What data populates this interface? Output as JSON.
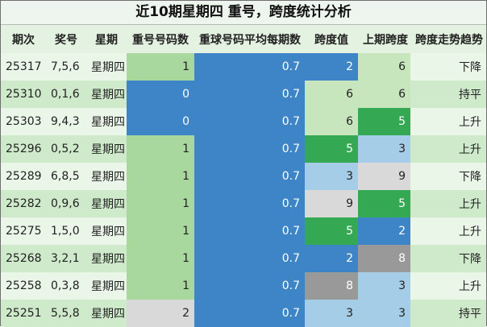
{
  "title": "近10期星期四 重号，跨度统计分析",
  "colors": {
    "row_light": "#eaf6e8",
    "row_dark": "#cfeacb",
    "green_light": "#a8d89d",
    "blue": "#3d85c6",
    "pale_green": "#c7e6bd",
    "green": "#34a853",
    "light_blue": "#a6cde8",
    "grey_light": "#d9d9d9",
    "grey": "#999999"
  },
  "headers": [
    "期次",
    "奖号",
    "星期",
    "重号号码数",
    "重球号码平均每期数",
    "跨度值",
    "上期跨度",
    "跨度走势趋势"
  ],
  "rows": [
    {
      "period": "25317",
      "numbers": "7,5,6",
      "weekday": "星期四",
      "repeat": "1",
      "avg": "0.7",
      "span": "2",
      "prev_span": "6",
      "trend": "下降",
      "repeat_bg": "green_light",
      "span_bg": "blue",
      "prev_bg": "pale_green"
    },
    {
      "period": "25310",
      "numbers": "0,1,6",
      "weekday": "星期四",
      "repeat": "0",
      "avg": "0.7",
      "span": "6",
      "prev_span": "6",
      "trend": "持平",
      "repeat_bg": "blue",
      "span_bg": "pale_green",
      "prev_bg": "pale_green"
    },
    {
      "period": "25303",
      "numbers": "9,4,3",
      "weekday": "星期四",
      "repeat": "0",
      "avg": "0.7",
      "span": "6",
      "prev_span": "5",
      "trend": "上升",
      "repeat_bg": "blue",
      "span_bg": "pale_green",
      "prev_bg": "green"
    },
    {
      "period": "25296",
      "numbers": "0,5,2",
      "weekday": "星期四",
      "repeat": "1",
      "avg": "0.7",
      "span": "5",
      "prev_span": "3",
      "trend": "上升",
      "repeat_bg": "green_light",
      "span_bg": "green",
      "prev_bg": "light_blue"
    },
    {
      "period": "25289",
      "numbers": "6,8,5",
      "weekday": "星期四",
      "repeat": "1",
      "avg": "0.7",
      "span": "3",
      "prev_span": "9",
      "trend": "下降",
      "repeat_bg": "green_light",
      "span_bg": "light_blue",
      "prev_bg": "grey_light"
    },
    {
      "period": "25282",
      "numbers": "0,9,6",
      "weekday": "星期四",
      "repeat": "1",
      "avg": "0.7",
      "span": "9",
      "prev_span": "5",
      "trend": "上升",
      "repeat_bg": "green_light",
      "span_bg": "grey_light",
      "prev_bg": "green"
    },
    {
      "period": "25275",
      "numbers": "1,5,0",
      "weekday": "星期四",
      "repeat": "1",
      "avg": "0.7",
      "span": "5",
      "prev_span": "2",
      "trend": "上升",
      "repeat_bg": "green_light",
      "span_bg": "green",
      "prev_bg": "blue"
    },
    {
      "period": "25268",
      "numbers": "3,2,1",
      "weekday": "星期四",
      "repeat": "1",
      "avg": "0.7",
      "span": "2",
      "prev_span": "8",
      "trend": "下降",
      "repeat_bg": "green_light",
      "span_bg": "blue",
      "prev_bg": "grey"
    },
    {
      "period": "25258",
      "numbers": "0,3,8",
      "weekday": "星期四",
      "repeat": "1",
      "avg": "0.7",
      "span": "8",
      "prev_span": "3",
      "trend": "上升",
      "repeat_bg": "green_light",
      "span_bg": "grey",
      "prev_bg": "light_blue"
    },
    {
      "period": "25251",
      "numbers": "5,5,8",
      "weekday": "星期四",
      "repeat": "2",
      "avg": "0.7",
      "span": "3",
      "prev_span": "3",
      "trend": "持平",
      "repeat_bg": "grey_light",
      "span_bg": "light_blue",
      "prev_bg": "light_blue"
    }
  ]
}
